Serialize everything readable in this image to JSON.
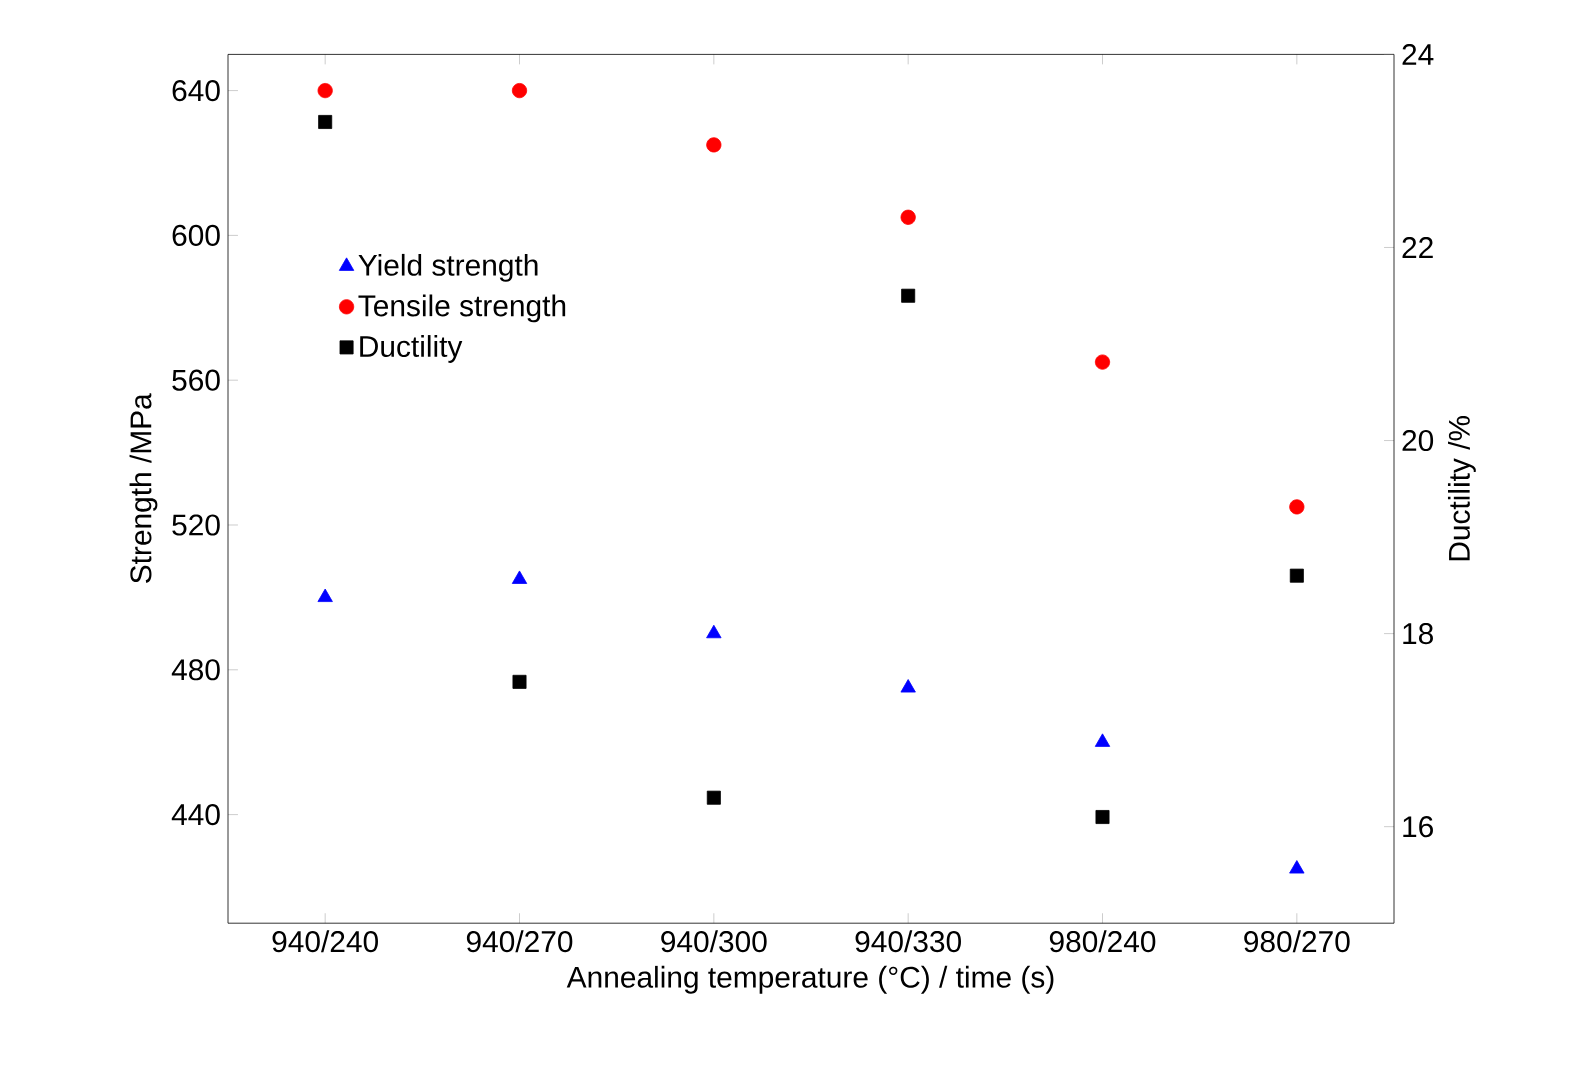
{
  "chart_data": {
    "type": "scatter",
    "xlabel": "Annealing temperature (°C) / time (s)",
    "ylabel": "Strength /MPa",
    "y2label": "Ductility /%",
    "categories": [
      "940/240",
      "940/270",
      "940/300",
      "940/330",
      "980/240",
      "980/270"
    ],
    "ylim": [
      410,
      650
    ],
    "yticks": [
      440,
      480,
      520,
      560,
      600,
      640
    ],
    "y2lim": [
      15,
      24
    ],
    "y2ticks": [
      16,
      18,
      20,
      22,
      24
    ],
    "legend": "top left",
    "grid": false,
    "series": [
      {
        "name": "Yield strength",
        "color": "#0000ff",
        "marker": "triangle",
        "values": [
          500,
          505,
          490,
          475,
          460,
          425
        ]
      },
      {
        "name": "Tensile strength",
        "color": "#ff0000",
        "marker": "circle",
        "values": [
          640,
          640,
          625,
          605,
          565,
          525
        ]
      },
      {
        "name": "Ductility",
        "color": "#000000",
        "marker": "square",
        "axis": "y2",
        "values": [
          23.3,
          17.5,
          16.3,
          21.5,
          16.1,
          18.6
        ]
      }
    ]
  }
}
